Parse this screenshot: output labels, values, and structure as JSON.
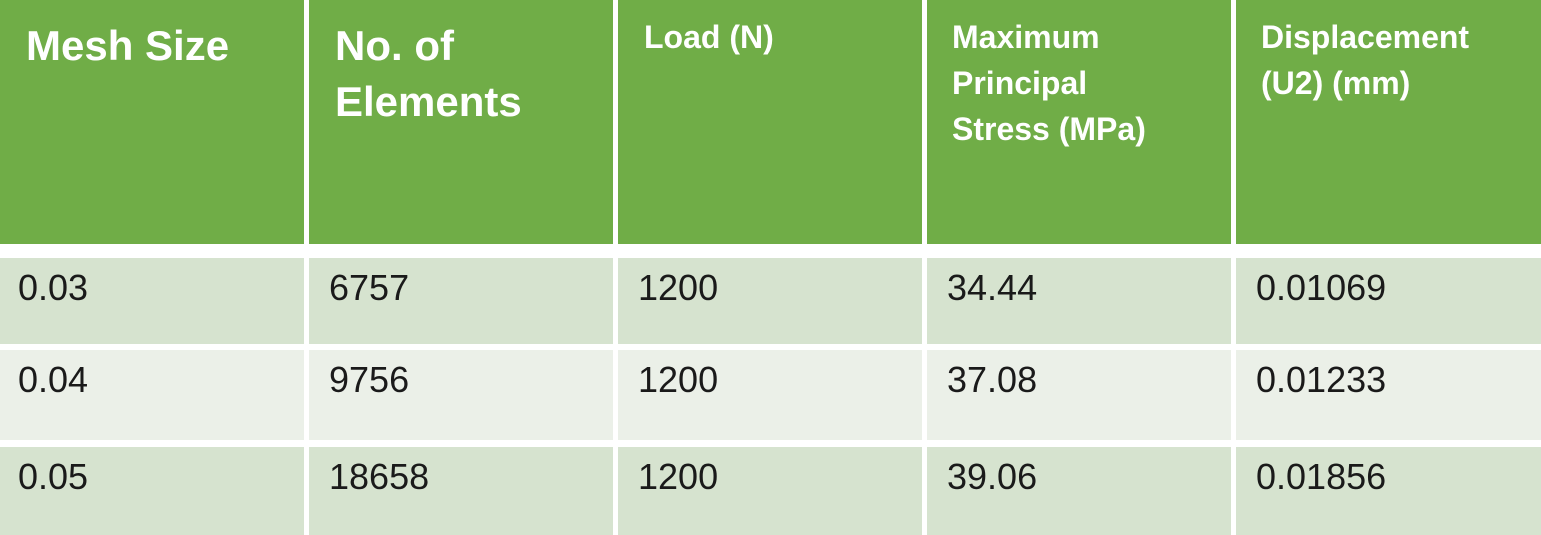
{
  "table": {
    "headers": [
      "Mesh Size",
      "No. of\nElements",
      "Load (N)",
      "Maximum\nPrincipal\nStress (MPa)",
      "Displacement\n(U2)  (mm)"
    ],
    "rows": [
      [
        "0.03",
        "6757",
        "1200",
        "34.44",
        "0.01069"
      ],
      [
        "0.04",
        "9756",
        "1200",
        "37.08",
        "0.01233"
      ],
      [
        "0.05",
        "18658",
        "1200",
        "39.06",
        "0.01856"
      ]
    ]
  },
  "colors": {
    "header_bg": "#70ad47",
    "header_text": "#ffffff",
    "row_odd_bg": "#d6e3cf",
    "row_even_bg": "#ebf0e8"
  }
}
